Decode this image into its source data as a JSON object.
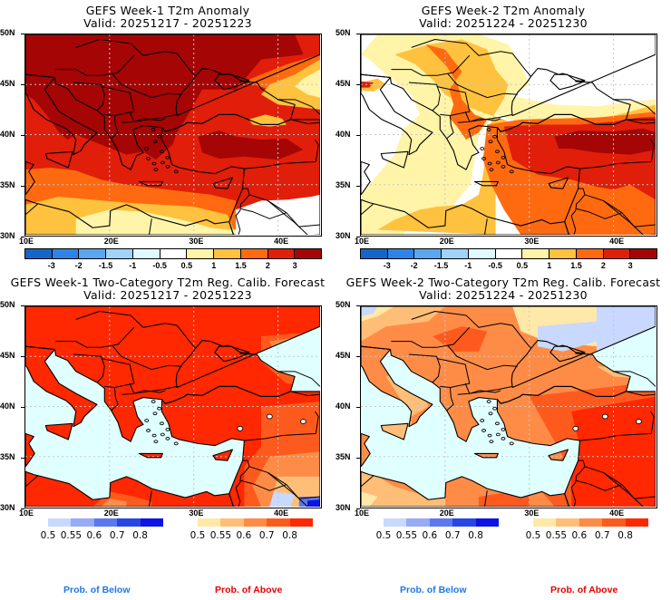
{
  "chart_data": [
    {
      "type": "heatmap",
      "title": "GEFS Week-1 T2m Anomaly",
      "subtitle": "Valid: 20251217 - 20251223",
      "xlabel": "",
      "ylabel": "",
      "x_ticks": [
        "10E",
        "20E",
        "30E",
        "40E"
      ],
      "y_ticks": [
        "50N",
        "45N",
        "40N",
        "35N",
        "30N"
      ],
      "xlim": [
        10,
        45
      ],
      "ylim": [
        30,
        50
      ],
      "grid": true,
      "colorbar": {
        "labels": [
          "-3",
          "-2",
          "-1.5",
          "-1",
          "-0.5",
          "0.5",
          "1",
          "1.5",
          "2",
          "3"
        ],
        "colors": [
          "#1565c8",
          "#2d83e6",
          "#5aa7f0",
          "#9fd3fa",
          "#e0f8ff",
          "#ffffff",
          "#fff4a8",
          "#ffc23e",
          "#ff6a10",
          "#e01e0a",
          "#a50505"
        ]
      },
      "regions_summary": "Strong warm anomaly (>3) over Balkans, Italy, central Europe; 2-3 over Turkey and Aegean; 1-2 over Mediterranean/N. Africa; near-normal over Middle East desert."
    },
    {
      "type": "heatmap",
      "title": "GEFS Week-2 T2m Anomaly",
      "subtitle": "Valid: 20251224 - 20251230",
      "xlabel": "",
      "ylabel": "",
      "x_ticks": [
        "10E",
        "20E",
        "30E",
        "40E"
      ],
      "y_ticks": [
        "50N",
        "45N",
        "40N",
        "35N",
        "30N"
      ],
      "xlim": [
        10,
        45
      ],
      "ylim": [
        30,
        50
      ],
      "grid": true,
      "colorbar": {
        "labels": [
          "-3",
          "-2",
          "-1.5",
          "-1",
          "-0.5",
          "0.5",
          "1",
          "1.5",
          "2",
          "3"
        ],
        "colors": [
          "#1565c8",
          "#2d83e6",
          "#5aa7f0",
          "#9fd3fa",
          "#e0f8ff",
          "#ffffff",
          "#fff4a8",
          "#ffc23e",
          "#ff6a10",
          "#e01e0a",
          "#a50505"
        ]
      },
      "regions_summary": "Warmest (2-3+) over central/eastern Turkey; 1-2 over Greece and Balkans; near-normal over Italy, Black Sea and Ukraine."
    },
    {
      "type": "heatmap",
      "title": "GEFS Week-1 Two-Category T2m Reg. Calib. Forecast",
      "subtitle": "Valid: 20251217 - 20251223",
      "xlabel": "",
      "ylabel": "",
      "x_ticks": [
        "10E",
        "20E",
        "30E",
        "40E"
      ],
      "y_ticks": [
        "50N",
        "45N",
        "40N",
        "35N",
        "30N"
      ],
      "xlim": [
        10,
        45
      ],
      "ylim": [
        30,
        50
      ],
      "grid": true,
      "colorbar_below": {
        "title": "Prob. of Below",
        "labels": [
          "0.5",
          "0.55",
          "0.6",
          "0.7",
          "0.8"
        ],
        "colors": [
          "#c8d8ff",
          "#96aaf5",
          "#5a78f0",
          "#2846e6",
          "#0a14e6"
        ]
      },
      "colorbar_above": {
        "title": "Prob. of Above",
        "labels": [
          "0.5",
          "0.55",
          "0.6",
          "0.7",
          "0.8"
        ],
        "colors": [
          "#ffe8a8",
          "#ffbe78",
          "#ff8c46",
          "#ff5a1e",
          "#ff2800"
        ]
      },
      "regions_summary": "Prob. of Above >0.8 over nearly all land; lower probabilities over Caucasus and Syria; small Prob. of Below area in far SE corner."
    },
    {
      "type": "heatmap",
      "title": "GEFS Week-2 Two-Category T2m Reg. Calib. Forecast",
      "subtitle": "Valid: 20251224 - 20251230",
      "xlabel": "",
      "ylabel": "",
      "x_ticks": [
        "10E",
        "20E",
        "30E",
        "40E"
      ],
      "y_ticks": [
        "50N",
        "45N",
        "40N",
        "35N",
        "30N"
      ],
      "xlim": [
        10,
        45
      ],
      "ylim": [
        30,
        50
      ],
      "grid": true,
      "colorbar_below": {
        "title": "Prob. of Below",
        "labels": [
          "0.5",
          "0.55",
          "0.6",
          "0.7",
          "0.8"
        ],
        "colors": [
          "#c8d8ff",
          "#96aaf5",
          "#5a78f0",
          "#2846e6",
          "#0a14e6"
        ]
      },
      "colorbar_above": {
        "title": "Prob. of Above",
        "labels": [
          "0.5",
          "0.55",
          "0.6",
          "0.7",
          "0.8"
        ],
        "colors": [
          "#ffe8a8",
          "#ffbe78",
          "#ff8c46",
          "#ff5a1e",
          "#ff2800"
        ]
      },
      "regions_summary": "Prob. of Above 0.6-0.8 over Balkans and Italy; >0.8 over eastern Turkey, Syria, Egypt; Prob. of Below 0.5-0.55 over Ukraine/Crimea."
    }
  ],
  "footer": {
    "below_label": "Prob. of Below",
    "above_label": "Prob. of Above",
    "below_color": "#1e78e6",
    "above_color": "#e60000"
  },
  "sea_color": "#e0ffff"
}
